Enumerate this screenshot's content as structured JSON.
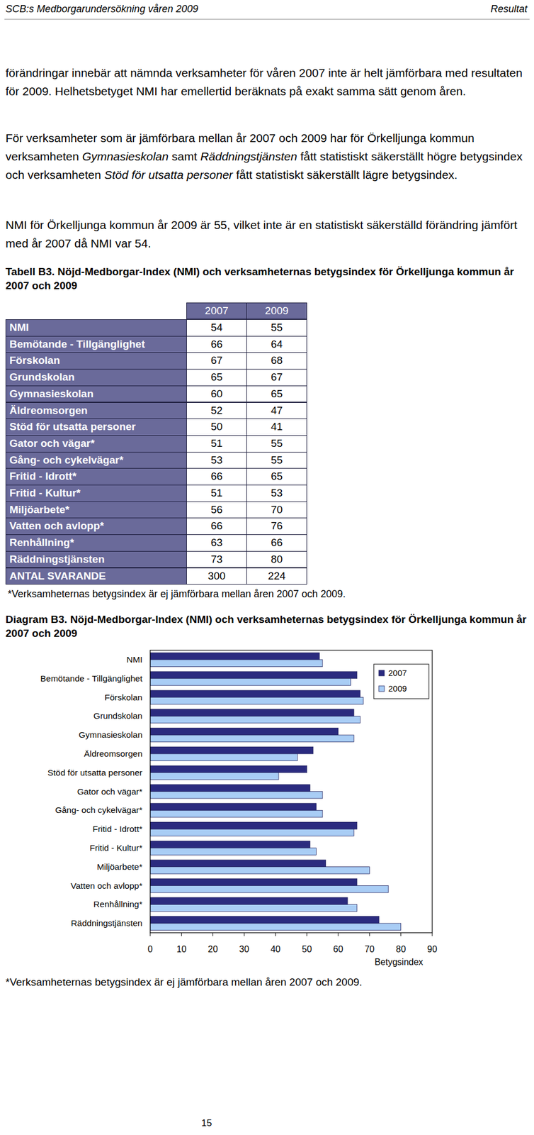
{
  "header": {
    "left": "SCB:s Medborgarundersökning våren 2009",
    "right": "Resultat"
  },
  "paragraphs": [
    {
      "runs": [
        {
          "text": "förändringar innebär att nämnda verksamheter för våren 2007 inte är helt jämförbara med resultaten för 2009. Helhetsbetyget NMI har emellertid beräknats på exakt samma sätt genom åren.",
          "italic": false
        }
      ]
    },
    {
      "runs": [
        {
          "text": "För verksamheter som är jämförbara mellan år 2007 och 2009 har för Örkelljunga kommun verksamheten ",
          "italic": false
        },
        {
          "text": "Gymnasieskolan",
          "italic": true
        },
        {
          "text": " samt ",
          "italic": false
        },
        {
          "text": "Räddningstjänsten",
          "italic": true
        },
        {
          "text": " fått statistiskt säkerställt högre betygsindex och verksamheten ",
          "italic": false
        },
        {
          "text": "Stöd för utsatta personer",
          "italic": true
        },
        {
          "text": " fått statistiskt säkerställt lägre betygsindex.",
          "italic": false
        }
      ]
    },
    {
      "runs": [
        {
          "text": "NMI för Örkelljunga kommun år 2009 är 55, vilket inte är en statistiskt säkerställd förändring jämfört med år 2007 då NMI var 54.",
          "italic": false
        }
      ]
    }
  ],
  "table": {
    "caption": "Tabell B3. Nöjd-Medborgar-Index (NMI) och verksamheternas betygsindex för Örkelljunga kommun år 2007 och 2009",
    "columns": [
      "2007",
      "2009"
    ],
    "rows": [
      {
        "label": "NMI",
        "values": [
          54,
          55
        ]
      },
      {
        "label": "Bemötande - Tillgänglighet",
        "values": [
          66,
          64
        ]
      },
      {
        "label": "Förskolan",
        "values": [
          67,
          68
        ]
      },
      {
        "label": "Grundskolan",
        "values": [
          65,
          67
        ]
      },
      {
        "label": "Gymnasieskolan",
        "values": [
          60,
          65
        ]
      },
      {
        "label": "Äldreomsorgen",
        "values": [
          52,
          47
        ]
      },
      {
        "label": "Stöd för utsatta personer",
        "values": [
          50,
          41
        ]
      },
      {
        "label": "Gator och vägar*",
        "values": [
          51,
          55
        ]
      },
      {
        "label": "Gång- och cykelvägar*",
        "values": [
          53,
          55
        ]
      },
      {
        "label": "Fritid - Idrott*",
        "values": [
          66,
          65
        ]
      },
      {
        "label": "Fritid - Kultur*",
        "values": [
          51,
          53
        ]
      },
      {
        "label": "Miljöarbete*",
        "values": [
          56,
          70
        ]
      },
      {
        "label": "Vatten och avlopp*",
        "values": [
          66,
          76
        ]
      },
      {
        "label": "Renhållning*",
        "values": [
          63,
          66
        ]
      },
      {
        "label": "Räddningstjänsten",
        "values": [
          73,
          80
        ]
      },
      {
        "label": "ANTAL SVARANDE",
        "values": [
          300,
          224
        ]
      }
    ],
    "note": "*Verksamheternas betygsindex är ej jämförbara mellan åren 2007 och 2009."
  },
  "chart_data": {
    "type": "bar",
    "title": "Diagram B3. Nöjd-Medborgar-Index (NMI) och verksamheternas betygsindex för Örkelljunga kommun år 2007 och 2009",
    "orientation": "horizontal",
    "categories": [
      "NMI",
      "Bemötande - Tillgänglighet",
      "Förskolan",
      "Grundskolan",
      "Gymnasieskolan",
      "Äldreomsorgen",
      "Stöd för utsatta personer",
      "Gator och vägar*",
      "Gång- och cykelvägar*",
      "Fritid - Idrott*",
      "Fritid - Kultur*",
      "Miljöarbete*",
      "Vatten och avlopp*",
      "Renhållning*",
      "Räddningstjänsten"
    ],
    "series": [
      {
        "name": "2007",
        "color": "#2b2b7f",
        "values": [
          54,
          66,
          67,
          65,
          60,
          52,
          50,
          51,
          53,
          66,
          51,
          56,
          66,
          63,
          73
        ]
      },
      {
        "name": "2009",
        "color": "#a9cdf5",
        "values": [
          55,
          64,
          68,
          67,
          65,
          47,
          41,
          55,
          55,
          65,
          53,
          70,
          76,
          66,
          80
        ]
      }
    ],
    "xlim": [
      0,
      90
    ],
    "xticks": [
      0,
      10,
      20,
      30,
      40,
      50,
      60,
      70,
      80,
      90
    ],
    "x_label": "Betygsindex",
    "legend": "top-right",
    "grid": false,
    "annotations": [
      "*Verksamheternas betygsindex är ej jämförbara mellan åren 2007 och 2009."
    ]
  },
  "footer": {
    "page_number": "15"
  }
}
